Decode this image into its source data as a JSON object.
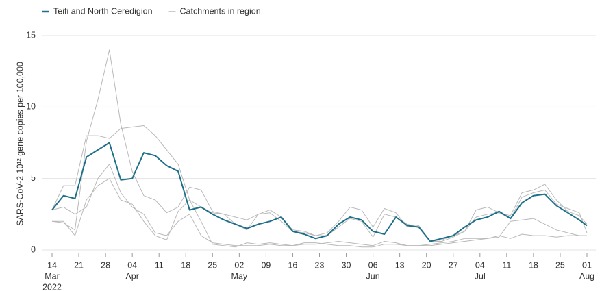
{
  "chart_data": {
    "type": "line",
    "ylabel": "SARS-CoV-2 10¹² gene copies per 100,000",
    "x": [
      "2022-03-14",
      "2022-03-17",
      "2022-03-20",
      "2022-03-23",
      "2022-03-26",
      "2022-03-29",
      "2022-04-01",
      "2022-04-04",
      "2022-04-07",
      "2022-04-10",
      "2022-04-13",
      "2022-04-16",
      "2022-04-19",
      "2022-04-22",
      "2022-04-25",
      "2022-04-28",
      "2022-05-01",
      "2022-05-04",
      "2022-05-07",
      "2022-05-10",
      "2022-05-13",
      "2022-05-16",
      "2022-05-19",
      "2022-05-22",
      "2022-05-25",
      "2022-05-28",
      "2022-05-31",
      "2022-06-03",
      "2022-06-06",
      "2022-06-09",
      "2022-06-12",
      "2022-06-15",
      "2022-06-18",
      "2022-06-21",
      "2022-06-24",
      "2022-06-27",
      "2022-06-30",
      "2022-07-03",
      "2022-07-06",
      "2022-07-09",
      "2022-07-12",
      "2022-07-15",
      "2022-07-18",
      "2022-07-21",
      "2022-07-24",
      "2022-07-27",
      "2022-07-30",
      "2022-08-01"
    ],
    "series": [
      {
        "name": "Teifi and North Ceredigion",
        "color": "#1d6f8a",
        "values": [
          2.8,
          3.8,
          3.6,
          6.5,
          7.0,
          7.5,
          4.9,
          5.0,
          6.8,
          6.6,
          5.9,
          5.5,
          2.8,
          3.0,
          2.5,
          2.1,
          1.8,
          1.5,
          1.8,
          2.0,
          2.3,
          1.3,
          1.1,
          0.8,
          1.0,
          1.8,
          2.3,
          2.1,
          1.3,
          1.1,
          2.3,
          1.7,
          1.6,
          0.6,
          0.8,
          1.0,
          1.6,
          2.1,
          2.3,
          2.7,
          2.2,
          3.3,
          3.8,
          3.9,
          3.1,
          2.6,
          2.1,
          1.7
        ]
      },
      {
        "name": "Catchments in region",
        "color": "#b8b8b8",
        "values": [
          [
            2.0,
            1.9,
            1.4,
            7.6,
            10.5,
            14.0,
            8.8,
            5.5,
            3.8,
            3.5,
            2.6,
            3.0,
            4.4,
            4.2,
            2.7,
            2.5,
            1.8,
            1.4,
            2.5,
            2.6,
            2.0,
            1.3,
            1.2,
            1.0,
            1.2,
            2.0,
            3.0,
            2.8,
            1.6,
            2.9,
            2.6,
            1.6,
            1.7,
            0.6,
            0.7,
            1.0,
            1.3,
            2.8,
            3.0,
            2.6,
            2.4,
            4.0,
            4.2,
            4.6,
            3.5,
            2.7,
            2.4,
            1.8
          ],
          [
            2.8,
            4.5,
            4.5,
            8.0,
            8.0,
            7.8,
            8.5,
            8.6,
            8.7,
            8.0,
            7.0,
            6.0,
            3.5,
            3.0,
            2.6,
            2.5,
            2.3,
            2.1,
            2.5,
            2.8,
            2.3,
            1.4,
            1.3,
            1.0,
            1.0,
            1.6,
            2.2,
            2.0,
            0.9,
            2.5,
            2.3,
            1.8,
            1.6,
            0.6,
            0.6,
            0.9,
            1.3,
            2.3,
            2.5,
            2.6,
            2.2,
            3.7,
            4.0,
            4.2,
            3.2,
            2.9,
            2.6,
            1.2
          ],
          [
            2.8,
            3.0,
            2.5,
            3.0,
            5.0,
            6.0,
            4.0,
            3.0,
            2.5,
            1.2,
            1.0,
            2.0,
            2.5,
            1.0,
            0.5,
            0.4,
            0.3,
            0.3,
            0.3,
            0.4,
            0.3,
            0.3,
            0.4,
            0.4,
            0.5,
            0.6,
            0.5,
            0.4,
            0.3,
            0.6,
            0.5,
            0.3,
            0.3,
            0.4,
            0.5,
            0.6,
            0.8,
            0.8,
            0.8,
            1.0,
            0.8,
            1.1,
            1.0,
            1.0,
            0.9,
            1.0,
            1.0,
            1.0
          ],
          [
            2.0,
            2.0,
            1.0,
            3.5,
            4.5,
            5.0,
            3.5,
            3.2,
            2.0,
            1.0,
            0.7,
            2.7,
            3.5,
            2.0,
            0.4,
            0.3,
            0.2,
            0.5,
            0.4,
            0.5,
            0.4,
            0.3,
            0.5,
            0.5,
            0.4,
            0.3,
            0.3,
            0.2,
            0.2,
            0.4,
            0.4,
            0.3,
            0.3,
            0.3,
            0.4,
            0.5,
            0.6,
            0.7,
            0.8,
            0.9,
            2.0,
            2.1,
            2.2,
            1.8,
            1.4,
            1.2,
            1.0,
            1.0
          ]
        ]
      }
    ],
    "xlim": [
      "2022-03-14",
      "2022-08-01"
    ],
    "xticks": [
      {
        "value": "2022-03-14",
        "label": "14"
      },
      {
        "value": "2022-03-21",
        "label": "21"
      },
      {
        "value": "2022-03-28",
        "label": "28"
      },
      {
        "value": "2022-04-04",
        "label": "04"
      },
      {
        "value": "2022-04-11",
        "label": "11"
      },
      {
        "value": "2022-04-18",
        "label": "18"
      },
      {
        "value": "2022-04-25",
        "label": "25"
      },
      {
        "value": "2022-05-02",
        "label": "02"
      },
      {
        "value": "2022-05-09",
        "label": "09"
      },
      {
        "value": "2022-05-16",
        "label": "16"
      },
      {
        "value": "2022-05-23",
        "label": "23"
      },
      {
        "value": "2022-05-30",
        "label": "30"
      },
      {
        "value": "2022-06-06",
        "label": "06"
      },
      {
        "value": "2022-06-13",
        "label": "13"
      },
      {
        "value": "2022-06-20",
        "label": "20"
      },
      {
        "value": "2022-06-27",
        "label": "27"
      },
      {
        "value": "2022-07-04",
        "label": "04"
      },
      {
        "value": "2022-07-11",
        "label": "11"
      },
      {
        "value": "2022-07-18",
        "label": "18"
      },
      {
        "value": "2022-07-25",
        "label": "25"
      },
      {
        "value": "2022-08-01",
        "label": "01"
      }
    ],
    "xmonth_labels": [
      {
        "value": "2022-03-14",
        "label": "Mar"
      },
      {
        "value": "2022-04-04",
        "label": "Apr"
      },
      {
        "value": "2022-05-02",
        "label": "May"
      },
      {
        "value": "2022-06-06",
        "label": "Jun"
      },
      {
        "value": "2022-07-04",
        "label": "Jul"
      },
      {
        "value": "2022-08-01",
        "label": "Aug"
      }
    ],
    "year_label": {
      "value": "2022-03-14",
      "label": "2022"
    },
    "ylim": [
      0,
      15
    ],
    "yticks": [
      0,
      5,
      10,
      15
    ],
    "grid": true,
    "legend": "top-left"
  }
}
